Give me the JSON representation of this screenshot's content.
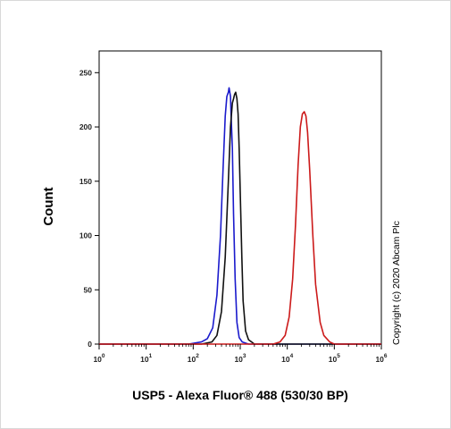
{
  "chart_data": {
    "type": "line",
    "title": "",
    "xlabel": "USP5 - Alexa Fluor® 488 (530/30 BP)",
    "ylabel": "Count",
    "x_scale": "log",
    "xlim": [
      1,
      1000000
    ],
    "ylim": [
      0,
      270
    ],
    "y_ticks": [
      0,
      50,
      100,
      150,
      200,
      250
    ],
    "y_tick_labels": [
      "0",
      "50",
      "100",
      "150",
      "200",
      "250"
    ],
    "x_ticks": [
      1,
      10,
      100,
      1000,
      10000,
      100000,
      1000000
    ],
    "x_tick_labels": [
      {
        "base": "10",
        "exp": "0"
      },
      {
        "base": "10",
        "exp": "1"
      },
      {
        "base": "10",
        "exp": "2"
      },
      {
        "base": "10",
        "exp": "3"
      },
      {
        "base": "10",
        "exp": "4"
      },
      {
        "base": "10",
        "exp": "5"
      },
      {
        "base": "10",
        "exp": "6"
      }
    ],
    "grid": false,
    "annotation": "Copyright (c) 2020 Abcam Plc",
    "series": [
      {
        "color": "#1a1acc",
        "x": [
          1,
          80,
          150,
          200,
          260,
          320,
          380,
          430,
          480,
          520,
          560,
          580,
          620,
          640,
          680,
          720,
          780,
          850,
          950,
          1100,
          1500,
          10000,
          1000000
        ],
        "y": [
          0,
          0,
          2,
          5,
          15,
          45,
          100,
          160,
          210,
          228,
          232,
          236,
          228,
          210,
          180,
          120,
          60,
          20,
          6,
          2,
          0,
          0,
          0
        ]
      },
      {
        "color": "#111111",
        "x": [
          1,
          150,
          250,
          320,
          400,
          480,
          560,
          620,
          680,
          720,
          760,
          800,
          850,
          900,
          950,
          1000,
          1080,
          1150,
          1300,
          1500,
          2000,
          10000,
          1000000
        ],
        "y": [
          0,
          0,
          2,
          8,
          30,
          80,
          150,
          200,
          222,
          226,
          230,
          232,
          226,
          212,
          180,
          140,
          80,
          40,
          12,
          4,
          0,
          0,
          0
        ]
      },
      {
        "color": "#cc1a1a",
        "x": [
          1,
          5000,
          7000,
          9000,
          11000,
          13000,
          15000,
          17000,
          19000,
          21000,
          23000,
          25000,
          27000,
          30000,
          35000,
          40000,
          50000,
          60000,
          80000,
          100000,
          1000000
        ],
        "y": [
          0,
          0,
          2,
          8,
          25,
          60,
          110,
          165,
          200,
          212,
          214,
          210,
          195,
          160,
          100,
          55,
          20,
          8,
          2,
          0,
          0
        ]
      }
    ]
  }
}
